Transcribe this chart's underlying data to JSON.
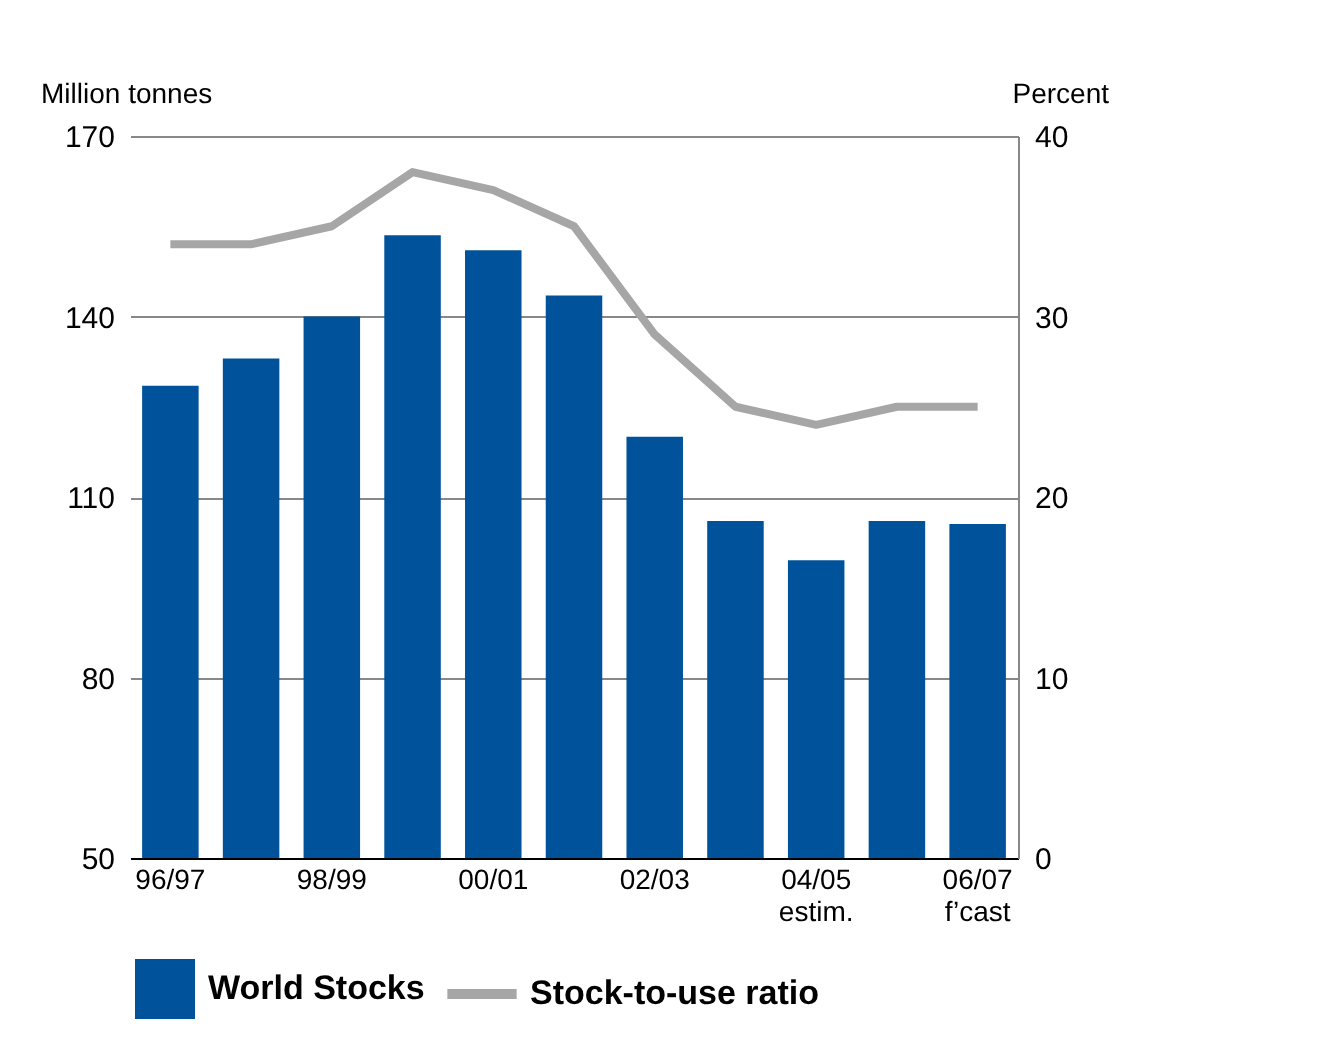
{
  "chart_data": {
    "type": "bar",
    "ylabel": "Million tonnes",
    "y2label": "Percent",
    "categories": [
      "96/97",
      null,
      "98/99",
      null,
      "00/01",
      null,
      "02/03",
      null,
      "04/05\nestim.",
      null,
      "06/07\nf’cast"
    ],
    "series": [
      {
        "name": "World Stocks",
        "color": "#00539b",
        "values": [
          128.5,
          133,
          140,
          153.5,
          151,
          143.5,
          120,
          106,
          99.5,
          106,
          105.5
        ]
      },
      {
        "name": "Stock-to-use ratio",
        "type": "line",
        "axis": "y2",
        "color": "#a6a6a6",
        "values": [
          34,
          34,
          35,
          38,
          37,
          35,
          29,
          25,
          24,
          25,
          25
        ]
      }
    ],
    "ylim": [
      50,
      170
    ],
    "yticks": [
      50,
      80,
      110,
      140,
      170
    ],
    "y2lim": [
      0,
      40
    ],
    "y2ticks": [
      0,
      10,
      20,
      30,
      40
    ],
    "grid": "y",
    "legend": "bottom"
  }
}
